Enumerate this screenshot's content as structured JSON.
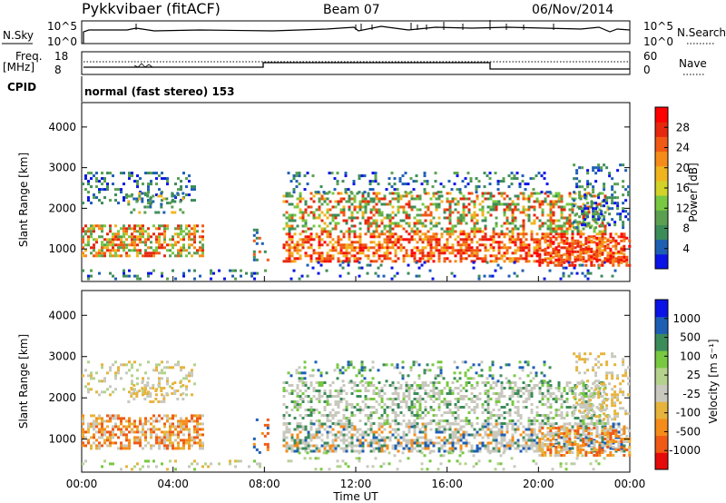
{
  "header": {
    "station": "Pykkvibaer (fitACF)",
    "beam": "Beam 07",
    "date": "06/Nov/2014"
  },
  "params": {
    "nsky_label": "N.Sky",
    "nsky_ticks": [
      "10^5",
      "10^0"
    ],
    "nsearch_label": "N.Search",
    "nsearch_ticks": [
      "10^5",
      "10^0"
    ],
    "freq_label_1": "Freq.",
    "freq_label_2": "[MHz]",
    "freq_ticks": [
      "18",
      "8"
    ],
    "nave_label": "Nave",
    "nave_ticks": [
      "60",
      "0"
    ],
    "cpid_label": "CPID",
    "cpid_text": "normal (fast stereo) 153"
  },
  "colors": {
    "power": [
      "#0a14e6",
      "#1e5fb4",
      "#3c8c5a",
      "#5aa050",
      "#78c841",
      "#d2d228",
      "#f0b41e",
      "#f58c19",
      "#f05a14",
      "#e6280f",
      "#ff0000"
    ],
    "velocity": [
      "#e60a0a",
      "#f05a14",
      "#f58c19",
      "#e6b43c",
      "#c8c8be",
      "#b4d28c",
      "#78c841",
      "#3c8c5a",
      "#1e5fb4",
      "#0a14e6"
    ]
  },
  "chart_data": [
    {
      "type": "heatmap",
      "name": "power",
      "ylabel": "Slant Range [km]",
      "yticks": [
        "1000",
        "2000",
        "3000",
        "4000"
      ],
      "ylim": [
        200,
        4600
      ],
      "xlim": [
        0,
        24
      ],
      "cbar_label": "Power [dB]",
      "cbar_ticks": [
        "4",
        "8",
        "12",
        "16",
        "20",
        "24",
        "28"
      ],
      "cbar_range": [
        0,
        32
      ]
    },
    {
      "type": "heatmap",
      "name": "velocity",
      "ylabel": "Slant Range [km]",
      "yticks": [
        "1000",
        "2000",
        "3000",
        "4000"
      ],
      "ylim": [
        200,
        4600
      ],
      "xlim": [
        0,
        24
      ],
      "xlabel": "Time UT",
      "xticks": [
        "00:00",
        "04:00",
        "08:00",
        "12:00",
        "16:00",
        "20:00",
        "00:00"
      ],
      "cbar_label": "Velocity [m s⁻¹]",
      "cbar_ticks": [
        "-1000",
        "-500",
        "-100",
        "-25",
        "25",
        "100",
        "500",
        "1000"
      ]
    }
  ]
}
